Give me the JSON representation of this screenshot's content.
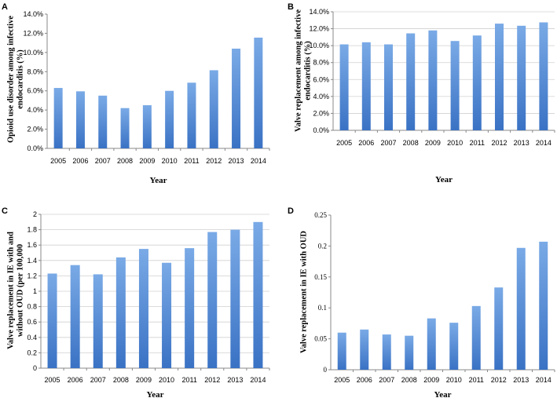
{
  "colors": {
    "bar_top": "#7aaae6",
    "bar_bottom": "#3a72c4"
  },
  "chart_data": [
    {
      "type": "bar",
      "panel": "A",
      "categories": [
        "2005",
        "2006",
        "2007",
        "2008",
        "2009",
        "2010",
        "2011",
        "2012",
        "2013",
        "2014"
      ],
      "values": [
        6.3,
        5.95,
        5.5,
        4.2,
        4.5,
        6.0,
        6.85,
        8.15,
        10.4,
        11.55
      ],
      "xlabel": "Year",
      "ylabel_lines": [
        "Opioid use disorder among infective",
        "endocarditis (%)"
      ],
      "ylim": [
        0,
        14
      ],
      "yticks": [
        "0.0%",
        "2.0%",
        "4.0%",
        "6.0%",
        "8.0%",
        "10.0%",
        "12.0%",
        "14.0%"
      ],
      "grid": false
    },
    {
      "type": "bar",
      "panel": "B",
      "categories": [
        "2005",
        "2006",
        "2007",
        "2008",
        "2009",
        "2010",
        "2011",
        "2012",
        "2013",
        "2014"
      ],
      "values": [
        10.15,
        10.4,
        10.15,
        11.45,
        11.8,
        10.55,
        11.2,
        12.6,
        12.35,
        12.75
      ],
      "xlabel": "Year",
      "ylabel_lines": [
        "Valve replacement among infective",
        "endocarditis (%)"
      ],
      "ylim": [
        0,
        14
      ],
      "yticks": [
        "0.0%",
        "2.0%",
        "4.0%",
        "6.0%",
        "8.0%",
        "10.0%",
        "12.0%",
        "14.0%"
      ],
      "grid": true
    },
    {
      "type": "bar",
      "panel": "C",
      "categories": [
        "2005",
        "2006",
        "2007",
        "2008",
        "2009",
        "2010",
        "2011",
        "2012",
        "2013",
        "2014"
      ],
      "values": [
        1.23,
        1.34,
        1.22,
        1.44,
        1.55,
        1.37,
        1.56,
        1.77,
        1.8,
        1.9
      ],
      "xlabel": "Year",
      "ylabel_lines": [
        "Valve replacement in IE with and",
        "without OUD (per 100,000"
      ],
      "ylim": [
        0,
        2
      ],
      "yticks": [
        "0",
        "0.2",
        "0.4",
        "0.6",
        "0.8",
        "1",
        "1.2",
        "1.4",
        "1.6",
        "1.8",
        "2"
      ],
      "grid": true
    },
    {
      "type": "bar",
      "panel": "D",
      "categories": [
        "2005",
        "2006",
        "2007",
        "2008",
        "2009",
        "2010",
        "2011",
        "2012",
        "2013",
        "2014"
      ],
      "values": [
        0.06,
        0.065,
        0.057,
        0.055,
        0.083,
        0.076,
        0.103,
        0.133,
        0.197,
        0.207
      ],
      "xlabel": "Year",
      "ylabel_lines": [
        "Valve replacement in IE with OUD"
      ],
      "ylim": [
        0,
        0.25
      ],
      "yticks": [
        "0",
        "0.05",
        "0.1",
        "0.15",
        "0.2",
        "0.25"
      ],
      "grid": false
    }
  ]
}
